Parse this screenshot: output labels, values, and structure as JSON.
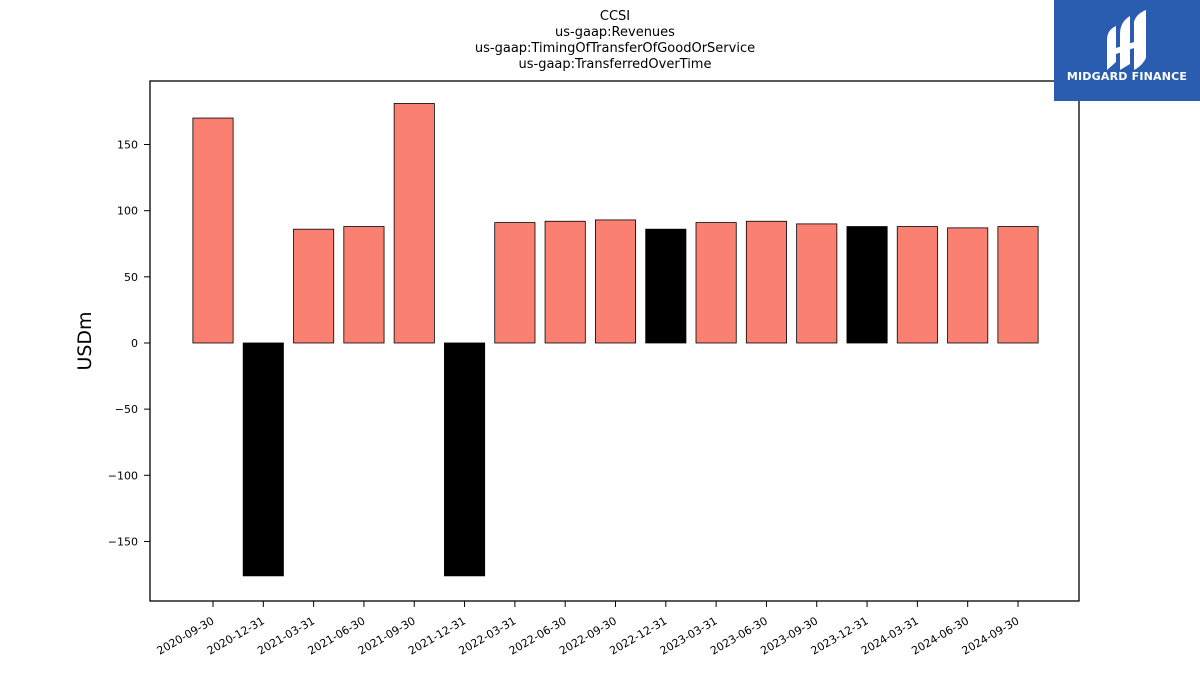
{
  "brand": {
    "name": "MIDGARD FINANCE",
    "bg_color": "#2a5db0"
  },
  "chart_data": {
    "type": "bar",
    "title_lines": [
      "CCSI",
      "us-gaap:Revenues",
      "us-gaap:TimingOfTransferOfGoodOrService",
      "us-gaap:TransferredOverTime"
    ],
    "xlabel": "",
    "ylabel": "USDm",
    "ylim": [
      -195,
      198
    ],
    "yticks": [
      150,
      100,
      50,
      0,
      -50,
      -100,
      -150
    ],
    "ytick_labels": [
      "150",
      "100",
      "50",
      "0",
      "−50",
      "−100",
      "−150"
    ],
    "categories": [
      "2020-09-30",
      "2020-12-31",
      "2021-03-31",
      "2021-06-30",
      "2021-09-30",
      "2021-12-31",
      "2022-03-31",
      "2022-06-30",
      "2022-09-30",
      "2022-12-31",
      "2023-03-31",
      "2023-06-30",
      "2023-09-30",
      "2023-12-31",
      "2024-03-31",
      "2024-06-30",
      "2024-09-30"
    ],
    "values": [
      170,
      -176,
      86,
      88,
      181,
      -176,
      91,
      92,
      93,
      86,
      91,
      92,
      90,
      88,
      88,
      87,
      88
    ],
    "bar_colors": [
      "#fa8072",
      "#000000",
      "#fa8072",
      "#fa8072",
      "#fa8072",
      "#000000",
      "#fa8072",
      "#fa8072",
      "#fa8072",
      "#000000",
      "#fa8072",
      "#fa8072",
      "#fa8072",
      "#000000",
      "#fa8072",
      "#fa8072",
      "#fa8072"
    ],
    "grid": false,
    "legend": "none"
  }
}
